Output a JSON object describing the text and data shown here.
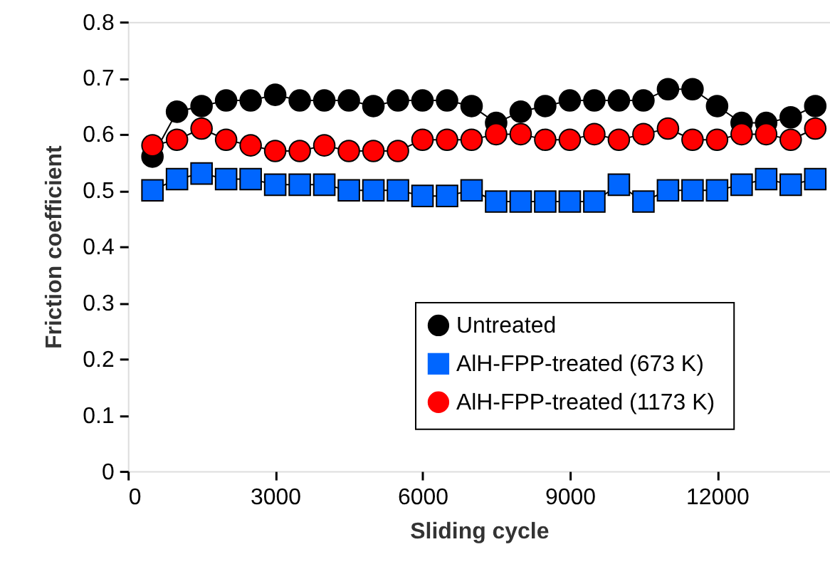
{
  "chart_data": {
    "type": "line",
    "xlabel": "Sliding cycle",
    "ylabel": "Friction coefficient",
    "x": [
      500,
      1000,
      1500,
      2000,
      2500,
      3000,
      3500,
      4000,
      4500,
      5000,
      5500,
      6000,
      6500,
      7000,
      7500,
      8000,
      8500,
      9000,
      9500,
      10000,
      10500,
      11000,
      11500,
      12000,
      12500,
      13000,
      13500,
      14000
    ],
    "series": [
      {
        "name": "Untreated",
        "color": "#000000",
        "marker": "circle",
        "values": [
          0.56,
          0.64,
          0.65,
          0.66,
          0.66,
          0.67,
          0.66,
          0.66,
          0.66,
          0.65,
          0.66,
          0.66,
          0.66,
          0.65,
          0.62,
          0.64,
          0.65,
          0.66,
          0.66,
          0.66,
          0.66,
          0.68,
          0.68,
          0.65,
          0.62,
          0.62,
          0.63,
          0.65
        ]
      },
      {
        "name": "AlH-FPP-treated  (673 K)",
        "color": "#0066ff",
        "marker": "square",
        "values": [
          0.5,
          0.52,
          0.53,
          0.52,
          0.52,
          0.51,
          0.51,
          0.51,
          0.5,
          0.5,
          0.5,
          0.49,
          0.49,
          0.5,
          0.48,
          0.48,
          0.48,
          0.48,
          0.48,
          0.51,
          0.48,
          0.5,
          0.5,
          0.5,
          0.51,
          0.52,
          0.51,
          0.52
        ]
      },
      {
        "name": "AlH-FPP-treated  (1173 K)",
        "color": "#ff0000",
        "marker": "circle",
        "values": [
          0.58,
          0.59,
          0.61,
          0.59,
          0.58,
          0.57,
          0.57,
          0.58,
          0.57,
          0.57,
          0.57,
          0.59,
          0.59,
          0.59,
          0.6,
          0.6,
          0.59,
          0.59,
          0.6,
          0.59,
          0.6,
          0.61,
          0.59,
          0.59,
          0.6,
          0.6,
          0.59,
          0.61
        ]
      }
    ],
    "xlim": [
      0,
      14300
    ],
    "xticks": [
      0,
      3000,
      6000,
      9000,
      12000
    ],
    "ylim": [
      0,
      0.8
    ],
    "yticks": [
      0,
      0.1,
      0.2,
      0.3,
      0.4,
      0.5,
      0.6,
      0.7,
      0.8
    ],
    "grid": false,
    "legend": "bottom right",
    "line_style": "solid"
  }
}
